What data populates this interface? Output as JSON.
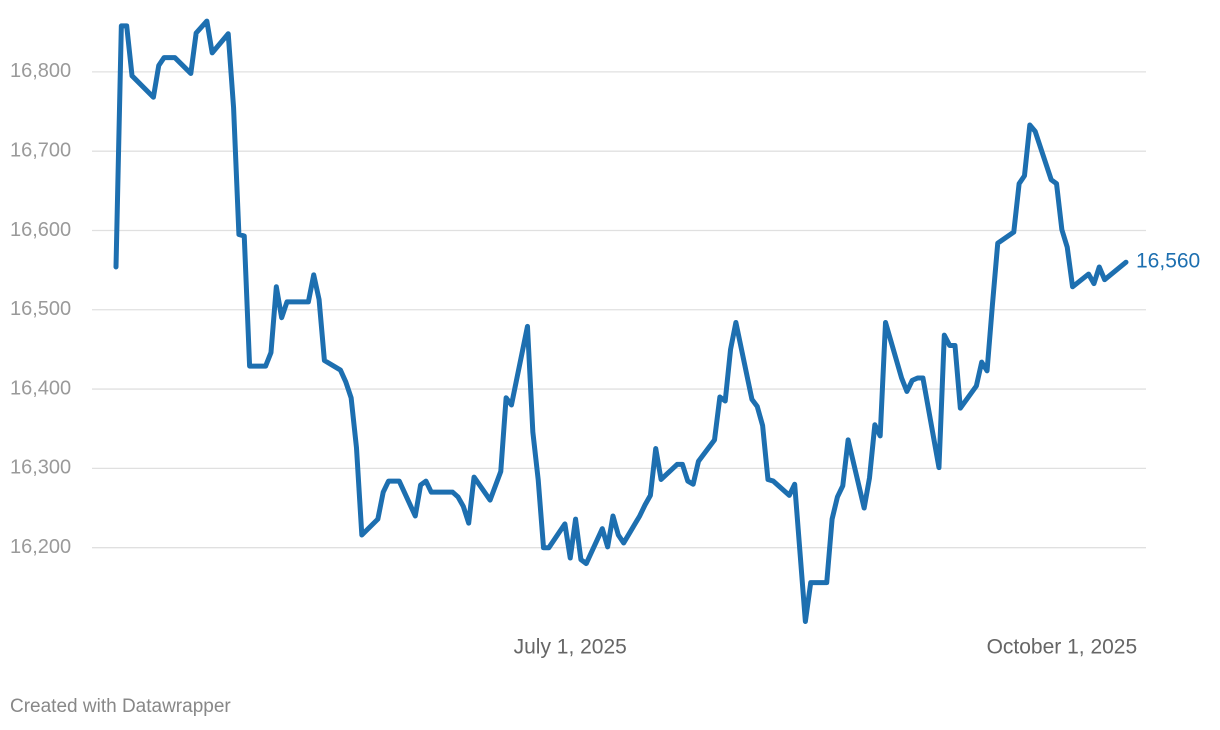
{
  "chart_data": {
    "type": "line",
    "x": [
      "2025-04-07",
      "2025-04-08",
      "2025-04-09",
      "2025-04-10",
      "2025-04-14",
      "2025-04-15",
      "2025-04-16",
      "2025-04-18",
      "2025-04-21",
      "2025-04-22",
      "2025-04-24",
      "2025-04-25",
      "2025-04-28",
      "2025-04-29",
      "2025-04-30",
      "2025-05-01",
      "2025-05-02",
      "2025-05-05",
      "2025-05-06",
      "2025-05-07",
      "2025-05-08",
      "2025-05-09",
      "2025-05-13",
      "2025-05-14",
      "2025-05-15",
      "2025-05-16",
      "2025-05-19",
      "2025-05-20",
      "2025-05-21",
      "2025-05-22",
      "2025-05-23",
      "2025-05-26",
      "2025-05-27",
      "2025-05-28",
      "2025-05-30",
      "2025-06-02",
      "2025-06-03",
      "2025-06-04",
      "2025-06-05",
      "2025-06-09",
      "2025-06-10",
      "2025-06-11",
      "2025-06-12",
      "2025-06-13",
      "2025-06-16",
      "2025-06-18",
      "2025-06-19",
      "2025-06-20",
      "2025-06-23",
      "2025-06-24",
      "2025-06-25",
      "2025-06-26",
      "2025-06-27",
      "2025-06-30",
      "2025-07-01",
      "2025-07-02",
      "2025-07-03",
      "2025-07-04",
      "2025-07-07",
      "2025-07-08",
      "2025-07-09",
      "2025-07-10",
      "2025-07-11",
      "2025-07-14",
      "2025-07-15",
      "2025-07-16",
      "2025-07-17",
      "2025-07-18",
      "2025-07-21",
      "2025-07-22",
      "2025-07-23",
      "2025-07-24",
      "2025-07-25",
      "2025-07-28",
      "2025-07-29",
      "2025-07-30",
      "2025-07-31",
      "2025-08-01",
      "2025-08-04",
      "2025-08-05",
      "2025-08-06",
      "2025-08-07",
      "2025-08-08",
      "2025-08-11",
      "2025-08-12",
      "2025-08-14",
      "2025-08-15",
      "2025-08-18",
      "2025-08-19",
      "2025-08-20",
      "2025-08-21",
      "2025-08-22",
      "2025-08-25",
      "2025-08-26",
      "2025-08-27",
      "2025-08-28",
      "2025-08-29",
      "2025-09-01",
      "2025-09-02",
      "2025-09-03",
      "2025-09-04",
      "2025-09-05",
      "2025-09-08",
      "2025-09-09",
      "2025-09-10",
      "2025-09-11",
      "2025-09-12",
      "2025-09-15",
      "2025-09-16",
      "2025-09-17",
      "2025-09-18",
      "2025-09-19",
      "2025-09-22",
      "2025-09-23",
      "2025-09-24",
      "2025-09-25",
      "2025-09-26",
      "2025-09-29",
      "2025-09-30",
      "2025-10-01",
      "2025-10-02",
      "2025-10-03",
      "2025-10-06",
      "2025-10-07",
      "2025-10-08",
      "2025-10-09",
      "2025-10-13"
    ],
    "values": [
      16554,
      16858,
      16858,
      16795,
      16768,
      16808,
      16818,
      16818,
      16798,
      16849,
      16864,
      16824,
      16848,
      16755,
      16595,
      16593,
      16429,
      16429,
      16446,
      16529,
      16490,
      16510,
      16510,
      16544,
      16513,
      16436,
      16424,
      16409,
      16389,
      16326,
      16216,
      16236,
      16270,
      16284,
      16284,
      16240,
      16279,
      16284,
      16270,
      16270,
      16264,
      16252,
      16231,
      16289,
      16260,
      16296,
      16389,
      16380,
      16479,
      16346,
      16286,
      16200,
      16200,
      16230,
      16187,
      16236,
      16185,
      16180,
      16224,
      16201,
      16240,
      16216,
      16206,
      16240,
      16254,
      16266,
      16325,
      16286,
      16305,
      16305,
      16284,
      16280,
      16309,
      16336,
      16390,
      16385,
      16450,
      16484,
      16387,
      16378,
      16354,
      16286,
      16284,
      16266,
      16280,
      16107,
      16156,
      16156,
      16236,
      16264,
      16278,
      16336,
      16250,
      16288,
      16355,
      16341,
      16484,
      16414,
      16397,
      16411,
      16414,
      16414,
      16301,
      16468,
      16455,
      16455,
      16376,
      16404,
      16434,
      16423,
      16506,
      16584,
      16598,
      16659,
      16669,
      16733,
      16725,
      16664,
      16659,
      16601,
      16579,
      16529,
      16545,
      16533,
      16554,
      16538,
      16560
    ],
    "value_labels": [
      null,
      null,
      null,
      null,
      null,
      null,
      null,
      null,
      null,
      null,
      null,
      null,
      null,
      null,
      null,
      null,
      null,
      null,
      null,
      null,
      null,
      null,
      null,
      null,
      null,
      null,
      null,
      null,
      null,
      null,
      null,
      null,
      null,
      null,
      null,
      null,
      null,
      null,
      null,
      null,
      null,
      null,
      null,
      null,
      null,
      null,
      null,
      null,
      null,
      null,
      null,
      null,
      null,
      null,
      null,
      null,
      null,
      null,
      null,
      null,
      null,
      null,
      null,
      null,
      null,
      null,
      null,
      null,
      null,
      null,
      null,
      null,
      null,
      null,
      null,
      null,
      null,
      null,
      null,
      null,
      null,
      null,
      null,
      null,
      null,
      null,
      null,
      null,
      null,
      null,
      null,
      null,
      null,
      null,
      null,
      null,
      null,
      null,
      null,
      null,
      null,
      null,
      null,
      null,
      null,
      null,
      null,
      null,
      null,
      null,
      null,
      null,
      null,
      null,
      null,
      null,
      null,
      null,
      null,
      null,
      null,
      null,
      null,
      null,
      null,
      null,
      "16,560"
    ],
    "color": "#1d6fb0",
    "xlim": [
      "2025-04-07",
      "2025-10-13"
    ],
    "xticks": [
      {
        "value": "2025-07-01",
        "label": "July 1, 2025"
      },
      {
        "value": "2025-10-01",
        "label": "October 1, 2025"
      }
    ],
    "ylim": [
      16100,
      16878
    ],
    "yticks": [
      {
        "value": 16200,
        "label": "16,200"
      },
      {
        "value": 16300,
        "label": "16,300"
      },
      {
        "value": 16400,
        "label": "16,400"
      },
      {
        "value": 16500,
        "label": "16,500"
      },
      {
        "value": 16600,
        "label": "16,600"
      },
      {
        "value": 16700,
        "label": "16,700"
      },
      {
        "value": 16800,
        "label": "16,800"
      }
    ],
    "grid": true,
    "credit": "Created with Datawrapper"
  }
}
